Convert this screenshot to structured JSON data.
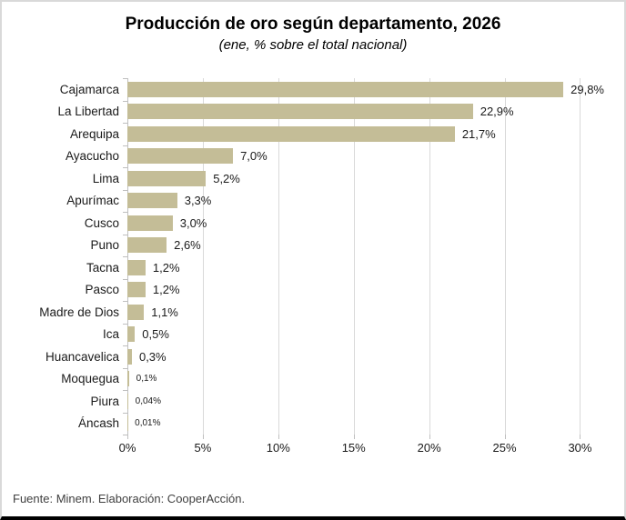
{
  "header": {
    "title": "Producción de oro según departamento, 2026",
    "subtitle": "(ene, % sobre el total nacional)"
  },
  "footer": {
    "source": "Fuente: Minem. Elaboración: CooperAcción."
  },
  "chart_data": {
    "type": "bar",
    "orientation": "horizontal",
    "title": "Producción de oro según departamento, 2026",
    "subtitle": "(ene, % sobre el total nacional)",
    "categories": [
      "Cajamarca",
      "La Libertad",
      "Arequipa",
      "Ayacucho",
      "Lima",
      "Apurímac",
      "Cusco",
      "Puno",
      "Tacna",
      "Pasco",
      "Madre de Dios",
      "Ica",
      "Huancavelica",
      "Moquegua",
      "Piura",
      "Áncash"
    ],
    "values": [
      29.8,
      22.9,
      21.7,
      7.0,
      5.2,
      3.3,
      3.0,
      2.6,
      1.2,
      1.2,
      1.1,
      0.5,
      0.3,
      0.1,
      0.04,
      0.01
    ],
    "value_labels": [
      "29,8%",
      "22,9%",
      "21,7%",
      "7,0%",
      "5,2%",
      "3,3%",
      "3,0%",
      "2,6%",
      "1,2%",
      "1,2%",
      "1,1%",
      "0,5%",
      "0,3%",
      "0,1%",
      "0,04%",
      "0,01%"
    ],
    "small_labels": [
      false,
      false,
      false,
      false,
      false,
      false,
      false,
      false,
      false,
      false,
      false,
      false,
      false,
      true,
      true,
      true
    ],
    "xlabel": "",
    "ylabel": "",
    "x_ticks": [
      0,
      5,
      10,
      15,
      20,
      25,
      30
    ],
    "x_tick_labels": [
      "0%",
      "5%",
      "10%",
      "15%",
      "20%",
      "25%",
      "30%"
    ],
    "xlim": [
      0,
      31.6
    ],
    "grid": "vertical",
    "legend": "none",
    "bar_color": "#c4bd97",
    "gridline_color": "#d9d9d9",
    "axis_color": "#bfbfbf"
  }
}
